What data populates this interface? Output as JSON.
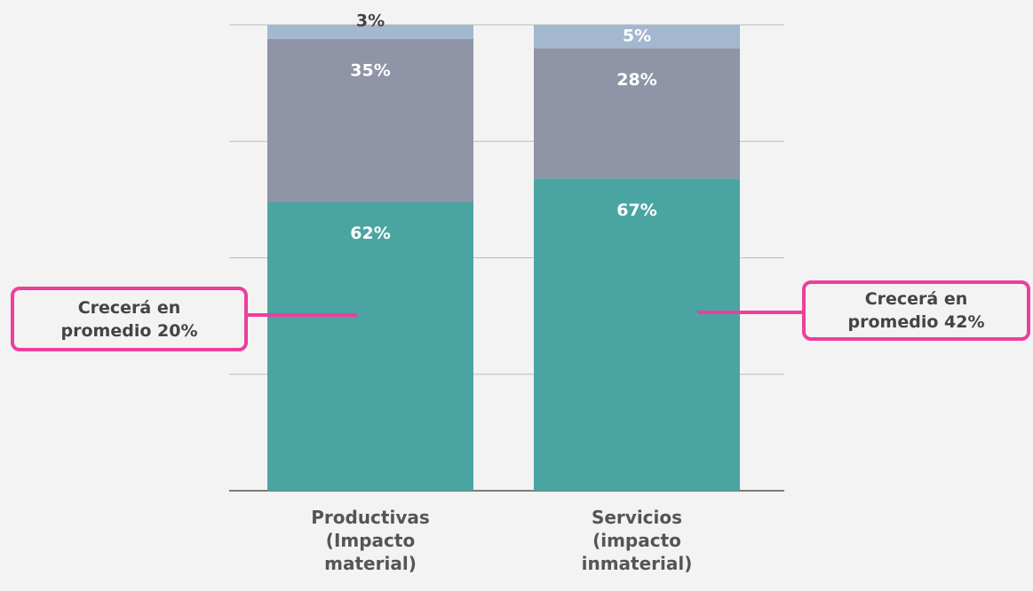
{
  "chart_data": {
    "type": "stacked_bar",
    "categories": [
      "Productivas (Impacto material)",
      "Servicios (impacto inmaterial)"
    ],
    "series": [
      {
        "color": "#4aa5a2",
        "values": [
          62,
          67
        ],
        "value_labels": [
          "62%",
          "67%"
        ]
      },
      {
        "color": "#8f94a6",
        "values": [
          35,
          28
        ],
        "value_labels": [
          "35%",
          "28%"
        ]
      },
      {
        "color": "#a3b7cf",
        "values": [
          3,
          5
        ],
        "value_labels": [
          "3%",
          "5%"
        ]
      }
    ],
    "ylim": [
      0,
      100
    ],
    "yticks": [
      0,
      25,
      50,
      75,
      100
    ],
    "grid": true,
    "annotations": [
      "Crecerá en promedio 20%",
      "Crecerá en promedio 42%"
    ],
    "annotation_color": "#ec3f9c"
  }
}
